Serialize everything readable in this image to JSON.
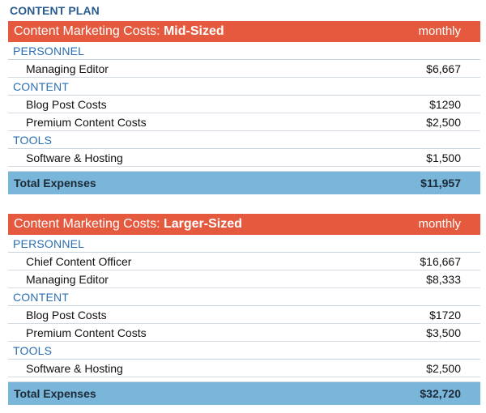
{
  "page_title": "CONTENT PLAN",
  "tables": [
    {
      "title_prefix": "Content Marketing Costs: ",
      "title_bold": "Mid-Sized",
      "column": "monthly",
      "sections": [
        {
          "name": "PERSONNEL",
          "rows": [
            {
              "label": "Managing Editor",
              "value": "$6,667"
            }
          ]
        },
        {
          "name": "CONTENT",
          "rows": [
            {
              "label": "Blog Post Costs",
              "value": "$1290"
            },
            {
              "label": "Premium Content Costs",
              "value": "$2,500"
            }
          ]
        },
        {
          "name": "TOOLS",
          "rows": [
            {
              "label": "Software & Hosting",
              "value": "$1,500"
            }
          ]
        }
      ],
      "total_label": "Total Expenses",
      "total_value": "$11,957"
    },
    {
      "title_prefix": "Content Marketing Costs: ",
      "title_bold": "Larger-Sized",
      "column": "monthly",
      "sections": [
        {
          "name": "PERSONNEL",
          "rows": [
            {
              "label": "Chief Content Officer",
              "value": "$16,667"
            },
            {
              "label": "Managing Editor",
              "value": "$8,333"
            }
          ]
        },
        {
          "name": "CONTENT",
          "rows": [
            {
              "label": "Blog Post Costs",
              "value": "$1720"
            },
            {
              "label": "Premium Content Costs",
              "value": "$3,500"
            }
          ]
        },
        {
          "name": "TOOLS",
          "rows": [
            {
              "label": "Software & Hosting",
              "value": "$2,500"
            }
          ]
        }
      ],
      "total_label": "Total Expenses",
      "total_value": "$32,720"
    }
  ]
}
